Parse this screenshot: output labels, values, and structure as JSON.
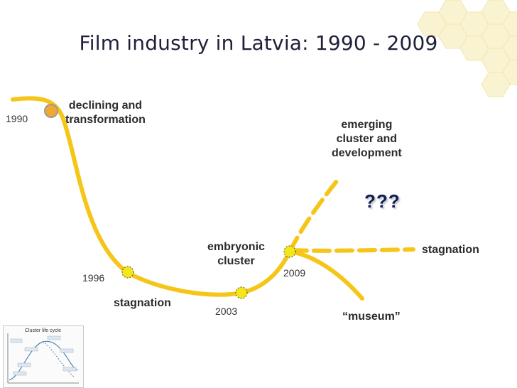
{
  "slide": {
    "title": "Film industry in Latvia: 1990 - 2009"
  },
  "phases": {
    "declining_line1": "declining and",
    "declining_line2": "transformation",
    "stagnation_1996": "stagnation",
    "embryonic_line1": "embryonic",
    "embryonic_line2": "cluster",
    "emerging_line1": "emerging",
    "emerging_line2": "cluster and",
    "emerging_line3": "development",
    "question": "???",
    "stagnation_future": "stagnation",
    "museum": "“museum”"
  },
  "years": {
    "y1990": "1990",
    "y1996": "1996",
    "y2003": "2003",
    "y2009": "2009"
  },
  "thumbnail": {
    "title": "Cluster life cycle"
  },
  "colors": {
    "curve": "#f5c518",
    "start_marker": "#f0a830",
    "marker_border": "#9a9a9a",
    "title_text": "#1f1f3a",
    "question_text": "#0f1f55"
  }
}
